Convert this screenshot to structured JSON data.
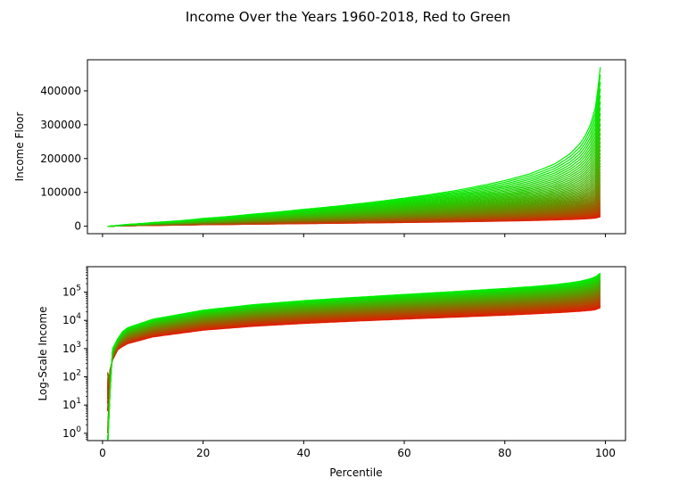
{
  "figure": {
    "title": "Income Over the Years 1960-2018, Red to Green"
  },
  "chart_data": [
    {
      "type": "line",
      "title": "Income Over the Years 1960-2018, Red to Green",
      "xlabel": "",
      "ylabel": "Income Floor",
      "xlim": [
        -3,
        104
      ],
      "ylim": [
        -22000,
        492000
      ],
      "xticks": [
        0,
        20,
        40,
        60,
        80,
        100
      ],
      "yticks": [
        0,
        100000,
        200000,
        300000,
        400000
      ],
      "ytick_labels": [
        "0",
        "100000",
        "200000",
        "300000",
        "400000"
      ],
      "y_scale": "linear",
      "grid": false,
      "color_encoding": {
        "first_year_color": "#e41a00",
        "last_year_color": "#00ee00"
      },
      "years": [
        1960,
        2018
      ],
      "x": [
        1,
        2,
        3,
        4,
        5,
        10,
        20,
        30,
        40,
        50,
        60,
        70,
        80,
        85,
        90,
        93,
        95,
        96,
        97,
        98,
        99
      ],
      "series_envelope": {
        "first_year_values": [
          80,
          400,
          900,
          1200,
          1500,
          2600,
          4500,
          6200,
          7800,
          9400,
          11100,
          13000,
          15300,
          16800,
          18600,
          20000,
          21100,
          21800,
          22700,
          24000,
          28000
        ],
        "last_year_values": [
          0,
          1000,
          2200,
          4000,
          5500,
          11000,
          23000,
          36000,
          50000,
          65000,
          83000,
          105000,
          135000,
          155000,
          185000,
          215000,
          245000,
          268000,
          300000,
          350000,
          470000
        ]
      }
    },
    {
      "type": "line",
      "xlabel": "Percentile",
      "ylabel": "Log-Scale Income",
      "xlim": [
        -3,
        104
      ],
      "y_scale": "log",
      "ylim": [
        0.55,
        800000
      ],
      "xticks": [
        0,
        20,
        40,
        60,
        80,
        100
      ],
      "yticks": [
        1,
        10,
        100,
        1000,
        10000,
        100000
      ],
      "ytick_labels": [
        {
          "base": "10",
          "exp": "0"
        },
        {
          "base": "10",
          "exp": "1"
        },
        {
          "base": "10",
          "exp": "2"
        },
        {
          "base": "10",
          "exp": "3"
        },
        {
          "base": "10",
          "exp": "4"
        },
        {
          "base": "10",
          "exp": "5"
        }
      ],
      "grid": false,
      "same_data_as": "Income Floor panel, plotted on a log y-axis"
    }
  ],
  "xtick_labels": [
    "0",
    "20",
    "40",
    "60",
    "80",
    "100"
  ]
}
